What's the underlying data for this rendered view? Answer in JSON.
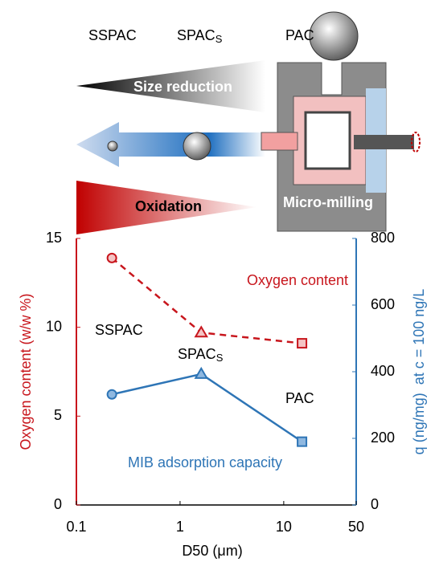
{
  "illustration": {
    "particles": [
      "SSPAC",
      "PAC"
    ],
    "spac": {
      "text": "SPAC",
      "subscript": "S"
    },
    "size_arrow": "Size reduction",
    "oxidation_arrow": "Oxidation",
    "device": "Micro-milling"
  },
  "chart_data": {
    "type": "line",
    "x": [
      0.22,
      1.6,
      15
    ],
    "xlim": [
      0.1,
      50
    ],
    "xticks": [
      0.1,
      1,
      10,
      50
    ],
    "xlog": true,
    "xlabel": "D50 (μm)",
    "ylabel": "Oxygen content (w/w %)",
    "y2label": "q (ng/mg)  at c = 100 ng/L",
    "ylim": [
      0,
      15
    ],
    "yticks": [
      0,
      5,
      10,
      15
    ],
    "y2lim": [
      0,
      800
    ],
    "y2ticks": [
      0,
      200,
      400,
      600,
      800
    ],
    "series": [
      {
        "name": "Oxygen content",
        "color": "#c8161d",
        "values": [
          13.9,
          9.7,
          9.1
        ]
      },
      {
        "name": "MIB adsorption capacity",
        "color": "#2e75b6",
        "axis": "y2",
        "values": [
          332,
          393,
          190
        ]
      }
    ],
    "point_labels": [
      "SSPAC",
      {
        "text": "SPAC",
        "subscript": "S"
      },
      "PAC"
    ]
  }
}
